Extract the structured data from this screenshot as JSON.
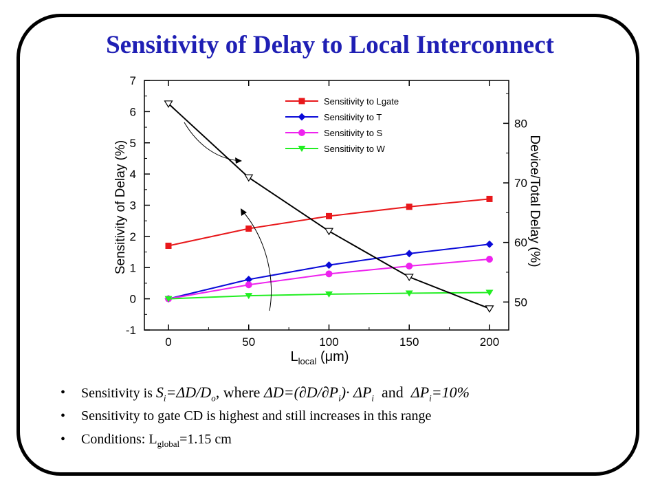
{
  "slide": {
    "title": "Sensitivity of Delay to Local Interconnect",
    "bullets": [
      {
        "text": "Sensitivity is"
      },
      {
        "text": "Sensitivity to gate CD is highest and still increases in this range"
      },
      {
        "text_before": "Conditions: L",
        "subscript": "global",
        "text_after": "=1.15 cm"
      }
    ],
    "formula": {
      "s_i": "S",
      "s_i_sub": "i",
      "eq1": "=ΔD/D",
      "d_sub": "o",
      "where": ", where",
      "delta_d": "ΔD=(∂D/∂P",
      "p_sub": "i",
      "dot_part": ")· ΔP",
      "p_sub2": "i",
      "and": "and",
      "delta_p": "ΔP",
      "p_sub3": "i",
      "ten": "=10%"
    }
  },
  "chart_data": {
    "type": "line",
    "x": [
      0,
      50,
      100,
      150,
      200
    ],
    "xlabel_main": "L",
    "xlabel_sub": "local",
    "xlabel_unit": "(μm)",
    "ylabel": "Sensitivity of Delay (%)",
    "y2label": "Device/Total Delay (%)",
    "xlim": [
      -15,
      212
    ],
    "ylim": [
      -1,
      7
    ],
    "y2lim": [
      45.3,
      87.2
    ],
    "xticks": [
      0,
      50,
      100,
      150,
      200
    ],
    "yticks": [
      -1,
      0,
      1,
      2,
      3,
      4,
      5,
      6,
      7
    ],
    "y2ticks": [
      50,
      60,
      70,
      80
    ],
    "legend_position": "top-right",
    "series": [
      {
        "name": "Sensitivity to Lgate",
        "color": "#e8181b",
        "marker": "square",
        "axis": "left",
        "values": [
          1.7,
          2.25,
          2.65,
          2.95,
          3.2
        ]
      },
      {
        "name": "Sensitivity to T",
        "color": "#0a0ad8",
        "marker": "diamond",
        "axis": "left",
        "values": [
          0.0,
          0.62,
          1.08,
          1.45,
          1.75
        ]
      },
      {
        "name": "Sensitivity to S",
        "color": "#ee22ee",
        "marker": "circle",
        "axis": "left",
        "values": [
          0.0,
          0.45,
          0.8,
          1.05,
          1.27
        ]
      },
      {
        "name": "Sensitivity to W",
        "color": "#22ee22",
        "marker": "triangle-down",
        "axis": "left",
        "values": [
          0.0,
          0.1,
          0.15,
          0.18,
          0.2
        ]
      },
      {
        "name": "",
        "color": "#000000",
        "marker": "triangle-down-open",
        "axis": "right",
        "values": [
          83.3,
          70.9,
          61.9,
          54.2,
          48.9
        ]
      }
    ]
  }
}
